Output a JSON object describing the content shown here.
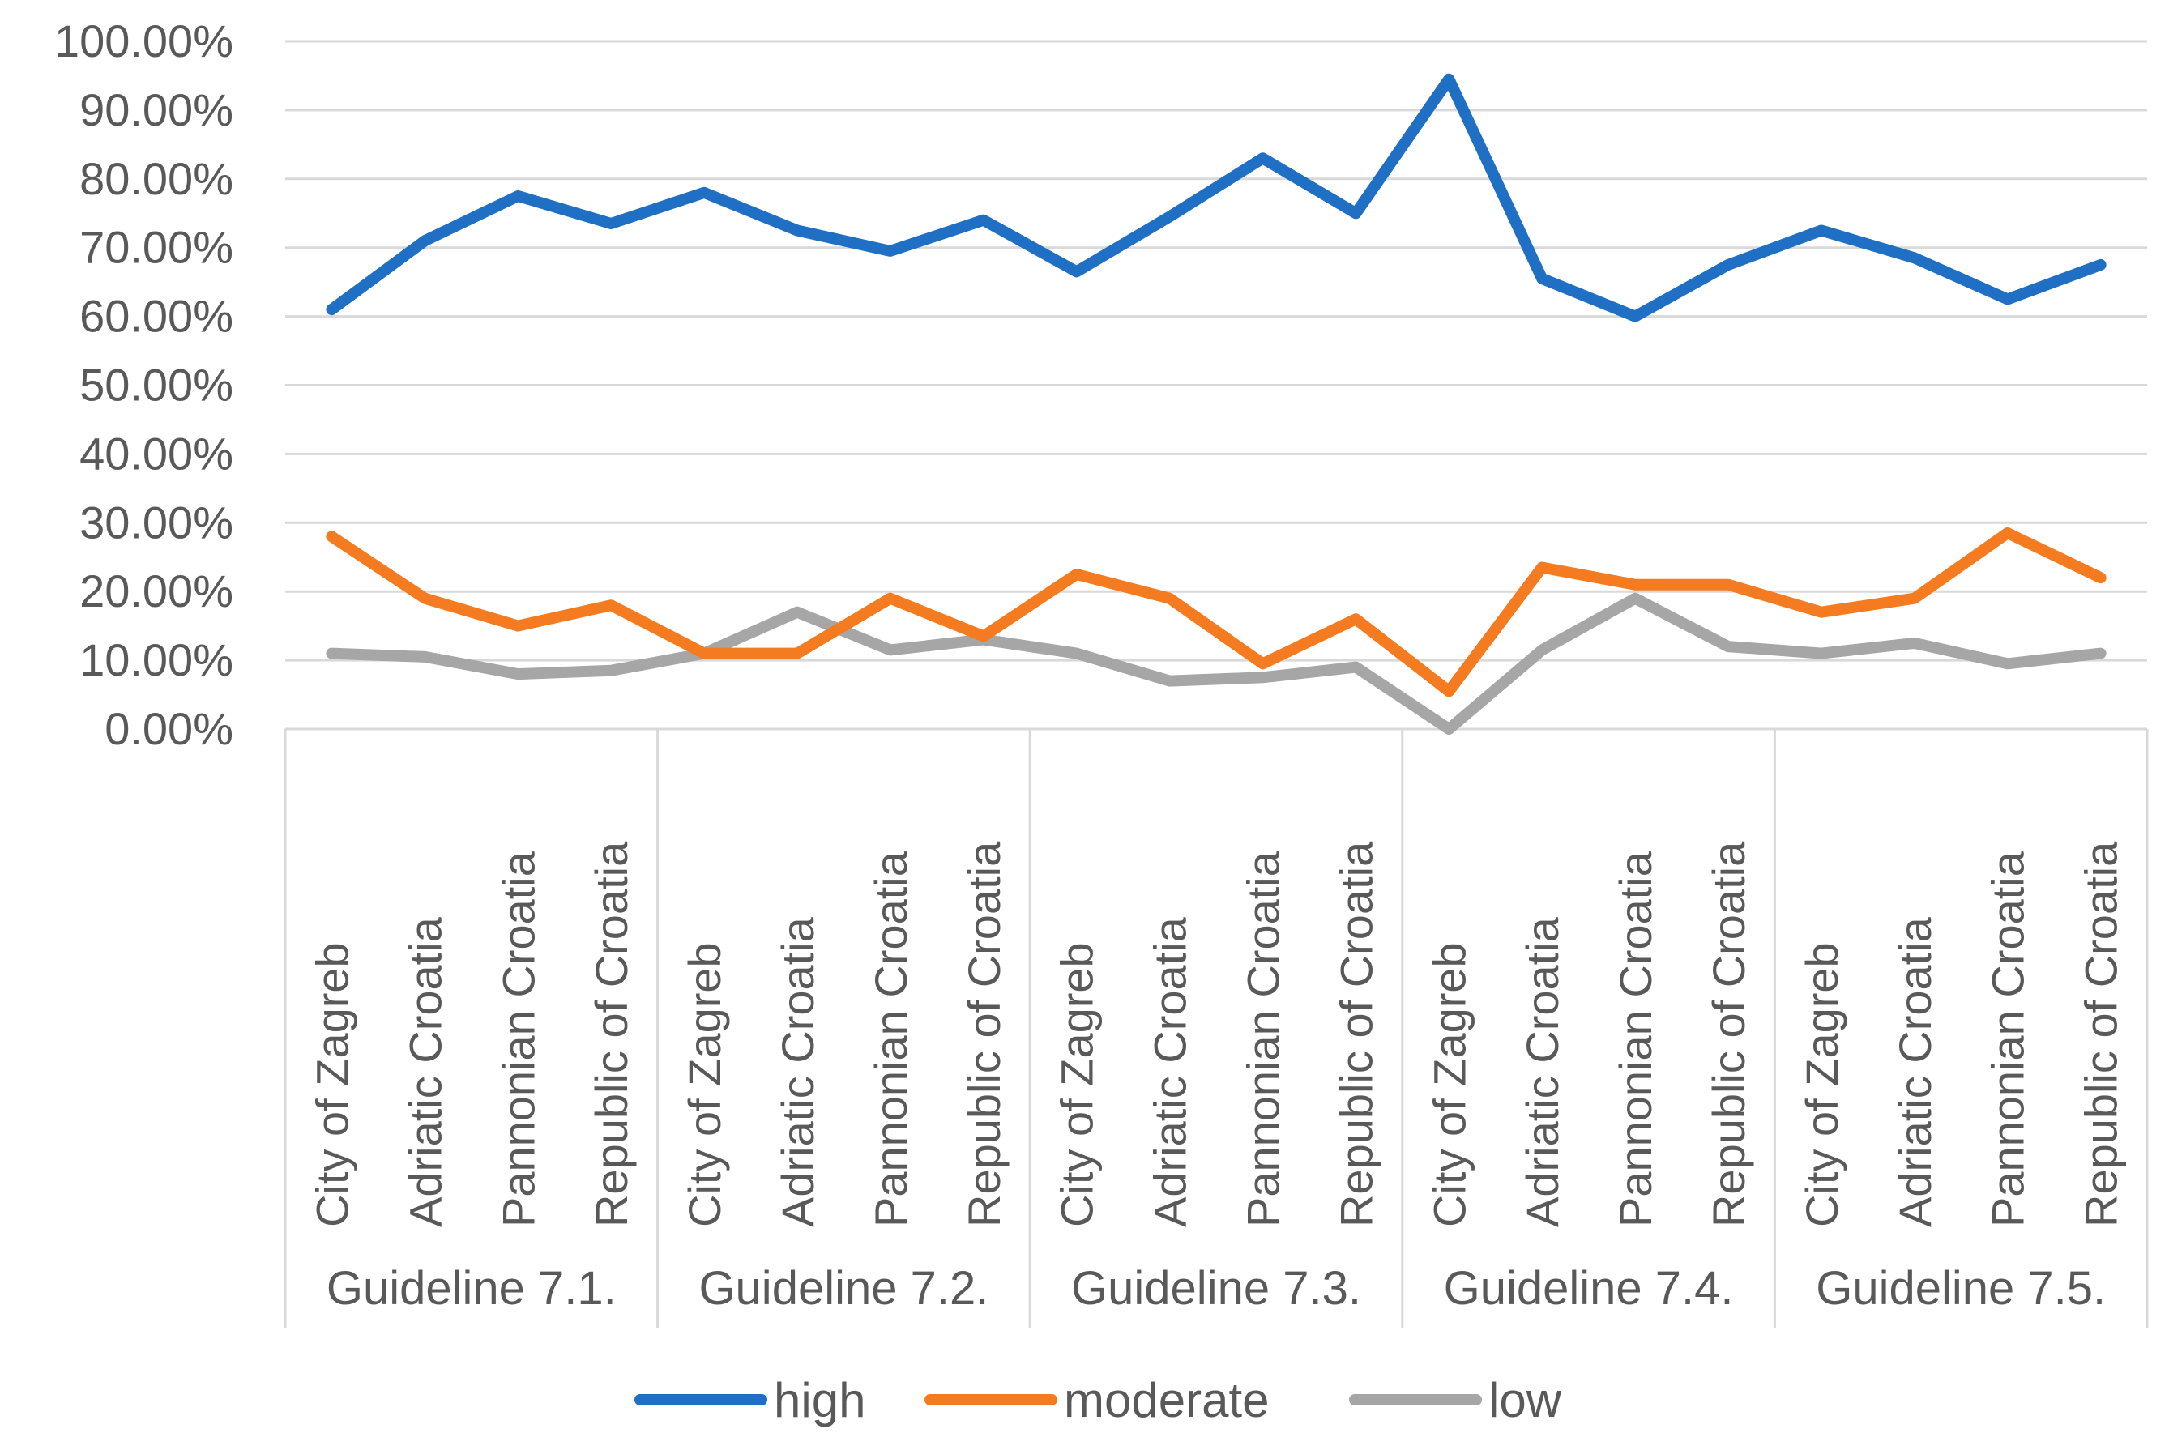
{
  "chart_data": {
    "type": "line",
    "title": "",
    "xlabel": "",
    "ylabel": "",
    "ylim": [
      0,
      100
    ],
    "y_ticks": [
      "0.00%",
      "10.00%",
      "20.00%",
      "30.00%",
      "40.00%",
      "50.00%",
      "60.00%",
      "70.00%",
      "80.00%",
      "90.00%",
      "100.00%"
    ],
    "grid": true,
    "legend_position": "bottom",
    "groups": [
      {
        "label": "Guideline 7.1.",
        "categories": [
          "City of Zagreb",
          "Adriatic Croatia",
          "Pannonian Croatia",
          "Republic of Croatia"
        ]
      },
      {
        "label": "Guideline 7.2.",
        "categories": [
          "City of Zagreb",
          "Adriatic Croatia",
          "Pannonian Croatia",
          "Republic of Croatia"
        ]
      },
      {
        "label": "Guideline 7.3.",
        "categories": [
          "City of Zagreb",
          "Adriatic Croatia",
          "Pannonian Croatia",
          "Republic of Croatia"
        ]
      },
      {
        "label": "Guideline 7.4.",
        "categories": [
          "City of Zagreb",
          "Adriatic Croatia",
          "Pannonian Croatia",
          "Republic of Croatia"
        ]
      },
      {
        "label": "Guideline 7.5.",
        "categories": [
          "City of Zagreb",
          "Adriatic Croatia",
          "Pannonian Croatia",
          "Republic of Croatia"
        ]
      }
    ],
    "series": [
      {
        "name": "high",
        "color": "#1f6fc4",
        "values": [
          61,
          71,
          77.5,
          73.5,
          78,
          72.5,
          69.5,
          74,
          66.5,
          74.5,
          83,
          75,
          94.5,
          65.5,
          60,
          67.5,
          72.5,
          68.5,
          62.5,
          67.5
        ]
      },
      {
        "name": "moderate",
        "color": "#f47b20",
        "values": [
          28,
          19,
          15,
          18,
          11,
          11,
          19,
          13.5,
          22.5,
          19,
          9.5,
          16,
          5.5,
          23.5,
          21,
          21,
          17,
          19,
          28.5,
          22
        ]
      },
      {
        "name": "low",
        "color": "#a6a6a6",
        "values": [
          11,
          10.5,
          8,
          8.5,
          11,
          17,
          11.5,
          13,
          11,
          7,
          7.5,
          9,
          0,
          11.5,
          19,
          12,
          11,
          12.5,
          9.5,
          11
        ]
      }
    ]
  }
}
